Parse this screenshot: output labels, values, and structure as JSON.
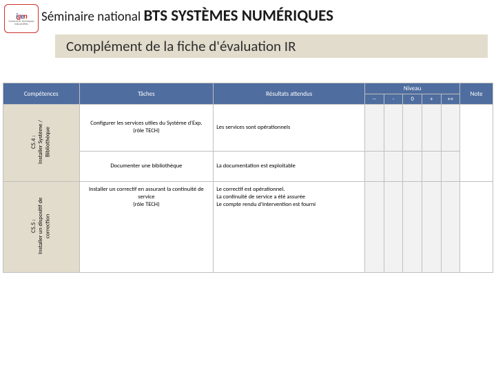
{
  "logo": {
    "sub": "Sciences et Techniques Industrielles"
  },
  "title": {
    "prefix": "Séminaire national ",
    "bold": "BTS SYSTÈMES NUMÉRIQUES"
  },
  "subtitle": "Complément de la fiche d'évaluation IR",
  "headers": {
    "competences": "Compétences",
    "taches": "Tâches",
    "resultats": "Résultats attendus",
    "niveau": "Niveau",
    "note": "Note",
    "niv_mm": "--",
    "niv_m": "-",
    "niv_0": "0",
    "niv_p": "+",
    "niv_pp": "++"
  },
  "rows": {
    "c54": {
      "label": "C5.4 :\nInstaller Système /\nBibliothèque",
      "r1": {
        "task": "Configurer les services utiles du Système d'Exp.\n(rôle TECH)",
        "res": "Les services sont opérationnels"
      },
      "r2": {
        "task": "Documenter une bibliothèque",
        "res": "La documentation est exploitable"
      }
    },
    "c55": {
      "label": "C5.5 :\nInstaller un dispositif de\ncorrection",
      "r1": {
        "task": "Installer un correctif en assurant la continuité de service\n(rôle TECH)",
        "res": "Le correctif est opérationnel.\nLa continuité de service a été assurée\nLe compte rendu d'intervention est fourni"
      }
    }
  },
  "colors": {
    "header_bg": "#4f6d9f",
    "comp_bg": "#e2dccc",
    "border": "#bfbfbf",
    "niv_bg": "#f2f2f2"
  }
}
